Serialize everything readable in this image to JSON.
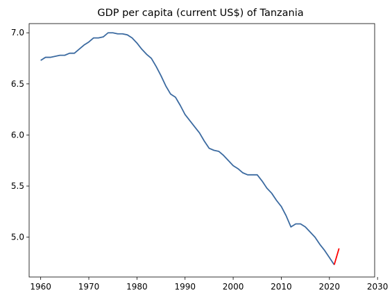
{
  "chart_data": {
    "type": "line",
    "title": "GDP per capita (current US$) of Tanzania",
    "xlabel": "",
    "ylabel": "",
    "xlim": [
      1957.6,
      2029.4
    ],
    "ylim": [
      4.61,
      7.09
    ],
    "xticks": [
      1960,
      1970,
      1980,
      1990,
      2000,
      2010,
      2020,
      2030
    ],
    "yticks": [
      5.0,
      5.5,
      6.0,
      6.5,
      7.0
    ],
    "ytick_labels": [
      "5.0",
      "5.5",
      "6.0",
      "6.5",
      "7.0"
    ],
    "grid": false,
    "legend": "none",
    "series": [
      {
        "color": "#3b6aa0",
        "x": [
          1960,
          1961,
          1962,
          1963,
          1964,
          1965,
          1966,
          1967,
          1968,
          1969,
          1970,
          1971,
          1972,
          1973,
          1974,
          1975,
          1976,
          1977,
          1978,
          1979,
          1980,
          1981,
          1982,
          1983,
          1984,
          1985,
          1986,
          1987,
          1988,
          1989,
          1990,
          1991,
          1992,
          1993,
          1994,
          1995,
          1996,
          1997,
          1998,
          1999,
          2000,
          2001,
          2002,
          2003,
          2004,
          2005,
          2006,
          2007,
          2008,
          2009,
          2010,
          2011,
          2012,
          2013,
          2014,
          2015,
          2016,
          2017,
          2018,
          2019,
          2020,
          2021
        ],
        "y": [
          6.73,
          6.76,
          6.76,
          6.77,
          6.78,
          6.78,
          6.8,
          6.8,
          6.84,
          6.88,
          6.91,
          6.95,
          6.95,
          6.96,
          7.0,
          7.0,
          6.99,
          6.99,
          6.98,
          6.95,
          6.9,
          6.84,
          6.79,
          6.75,
          6.67,
          6.58,
          6.48,
          6.4,
          6.37,
          6.29,
          6.2,
          6.14,
          6.08,
          6.02,
          5.94,
          5.87,
          5.85,
          5.84,
          5.8,
          5.75,
          5.7,
          5.67,
          5.63,
          5.61,
          5.61,
          5.61,
          5.55,
          5.48,
          5.43,
          5.36,
          5.3,
          5.21,
          5.1,
          5.13,
          5.13,
          5.1,
          5.05,
          5.0,
          4.93,
          4.87,
          4.8,
          4.73
        ]
      },
      {
        "color": "#ff0000",
        "x": [
          2021,
          2022
        ],
        "y": [
          4.73,
          4.89
        ]
      }
    ]
  }
}
